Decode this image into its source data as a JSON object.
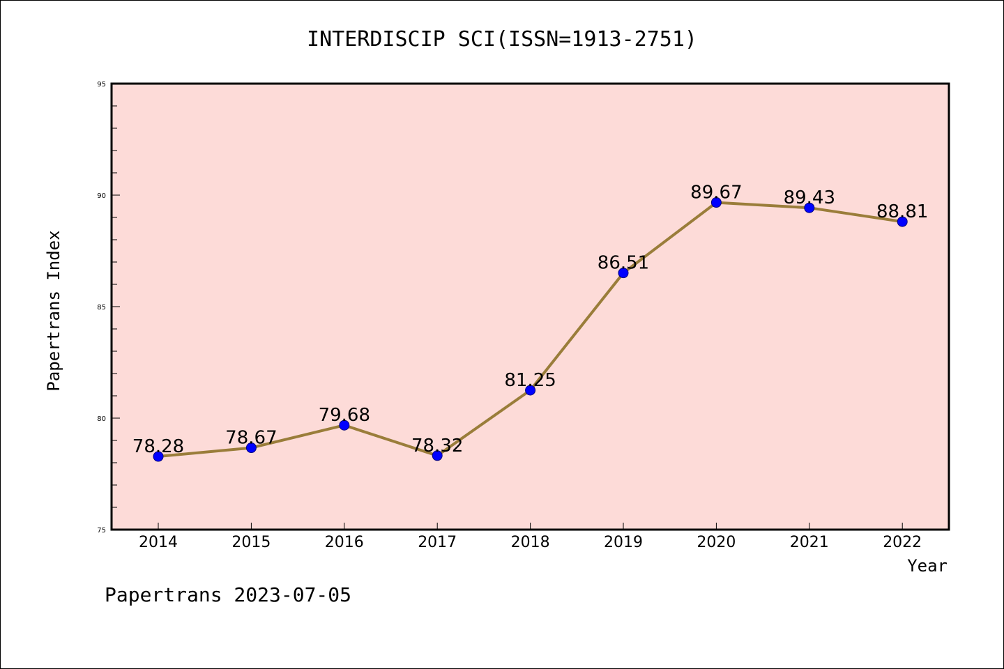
{
  "chart_data": {
    "type": "line",
    "title": "INTERDISCIP SCI(ISSN=1913-2751)",
    "xlabel": "Year",
    "ylabel": "Papertrans Index",
    "categories": [
      "2014",
      "2015",
      "2016",
      "2017",
      "2018",
      "2019",
      "2020",
      "2021",
      "2022"
    ],
    "series": [
      {
        "values": [
          78.28,
          78.67,
          79.68,
          78.32,
          81.25,
          86.51,
          89.67,
          89.43,
          88.81
        ],
        "data_labels": [
          "78.28",
          "78.67",
          "79.68",
          "78.32",
          "81.25",
          "86.51",
          "89.67",
          "89.43",
          "88.81"
        ]
      }
    ],
    "ylim": [
      75,
      95
    ],
    "yticks": [
      "75",
      "80",
      "85",
      "90",
      "95"
    ],
    "grid": false,
    "colors": {
      "plot_background": "#fddbd8",
      "line": "#9a7d3a",
      "marker": "#0000ff"
    }
  },
  "footer": {
    "watermark": "Papertrans 2023-07-05"
  }
}
